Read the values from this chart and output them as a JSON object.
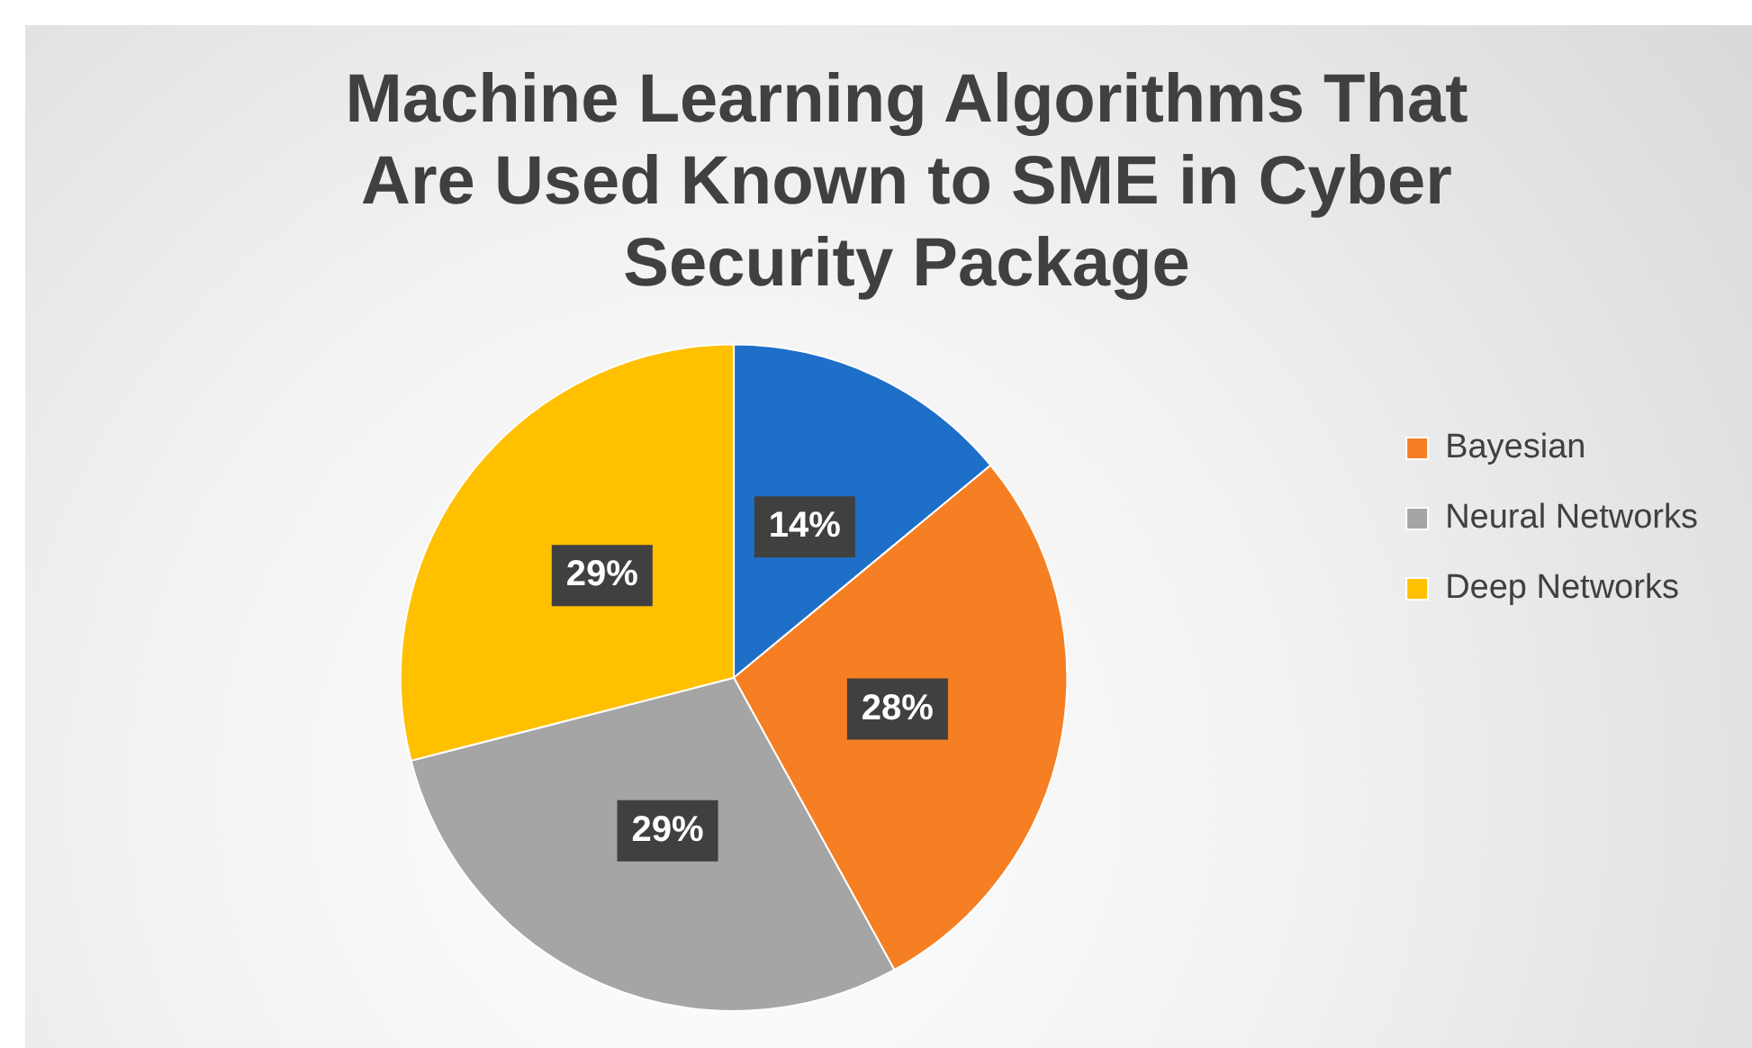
{
  "chart_data": {
    "type": "pie",
    "title": "Machine Learning Algorithms That Are Used Known to SME in Cyber Security Package",
    "categories": [
      null,
      "Bayesian",
      "Neural Networks",
      "Deep Networks"
    ],
    "values": [
      14,
      28,
      29,
      29
    ],
    "colors": [
      "#1e6fc8",
      "#f57f22",
      "#a5a5a5",
      "#ffc000"
    ],
    "value_labels": [
      "14%",
      "28%",
      "29%",
      "29%"
    ],
    "legend": "right"
  }
}
